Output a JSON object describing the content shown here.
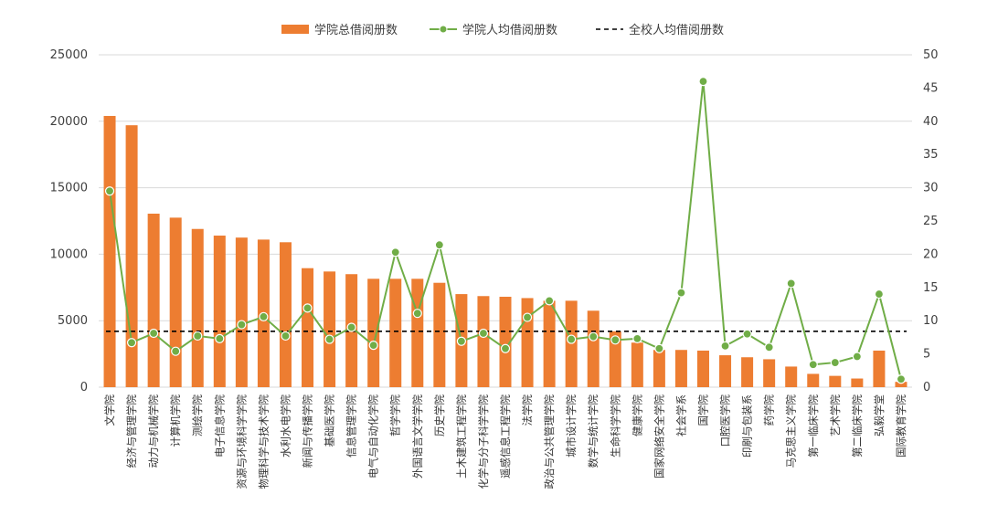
{
  "chart_data": {
    "type": "bar",
    "legend": {
      "placement": "top-center",
      "items": [
        {
          "label": "学院总借阅册数",
          "kind": "bar"
        },
        {
          "label": "学院人均借阅册数",
          "kind": "line"
        },
        {
          "label": "全校人均借阅册数",
          "kind": "dashed"
        }
      ]
    },
    "categories": [
      "文学院",
      "经济与管理学院",
      "动力与机械学院",
      "计算机学院",
      "测绘学院",
      "电子信息学院",
      "资源与环境科学学院",
      "物理科学与技术学院",
      "水利水电学院",
      "新闻与传播学院",
      "基础医学院",
      "信息管理学院",
      "电气与自动化学院",
      "哲学学院",
      "外国语言文学学院",
      "历史学院",
      "土木建筑工程学院",
      "化学与分子科学学院",
      "遥感信息工程学院",
      "法学院",
      "政治与公共管理学院",
      "城市设计学院",
      "数学与统计学院",
      "生命科学学院",
      "健康学院",
      "国家网络安全学院",
      "社会学系",
      "国学院",
      "口腔医学院",
      "印刷与包装系",
      "药学院",
      "马克思主义学院",
      "第一临床学院",
      "艺术学院",
      "第二临床学院",
      "弘毅学堂",
      "国际教育学院"
    ],
    "series": [
      {
        "name": "学院总借阅册数",
        "axis": "left",
        "color": "#ED7D31",
        "values": [
          20400,
          19700,
          13050,
          12750,
          11900,
          11400,
          11250,
          11100,
          10900,
          8950,
          8700,
          8500,
          8150,
          8150,
          8150,
          7850,
          7000,
          6850,
          6800,
          6700,
          6500,
          6500,
          5750,
          4200,
          3350,
          2800,
          2800,
          2750,
          2400,
          2250,
          2100,
          1550,
          1000,
          850,
          650,
          2750,
          400
        ]
      },
      {
        "name": "学院人均借阅册数",
        "axis": "right",
        "color": "#70AD47",
        "values": [
          29.5,
          6.7,
          8.1,
          5.4,
          7.7,
          7.3,
          9.4,
          10.6,
          7.7,
          11.9,
          7.2,
          9.0,
          6.3,
          20.3,
          11.1,
          21.4,
          6.9,
          8.1,
          5.8,
          10.5,
          13.0,
          7.2,
          7.6,
          7.1,
          7.3,
          5.8,
          14.2,
          46.0,
          6.2,
          8.0,
          6.0,
          15.6,
          3.4,
          3.7,
          4.6,
          14.0,
          1.2
        ]
      },
      {
        "name": "全校人均借阅册数",
        "axis": "right",
        "color": "#000000",
        "value": 8.4
      }
    ],
    "y_left": {
      "min": 0,
      "max": 25000,
      "ticks": [
        "0",
        "5000",
        "10000",
        "15000",
        "20000",
        "25000"
      ]
    },
    "y_right": {
      "min": 0,
      "max": 50,
      "ticks": [
        "0",
        "5",
        "10",
        "15",
        "20",
        "25",
        "30",
        "35",
        "40",
        "45",
        "50"
      ]
    },
    "grid": true
  }
}
